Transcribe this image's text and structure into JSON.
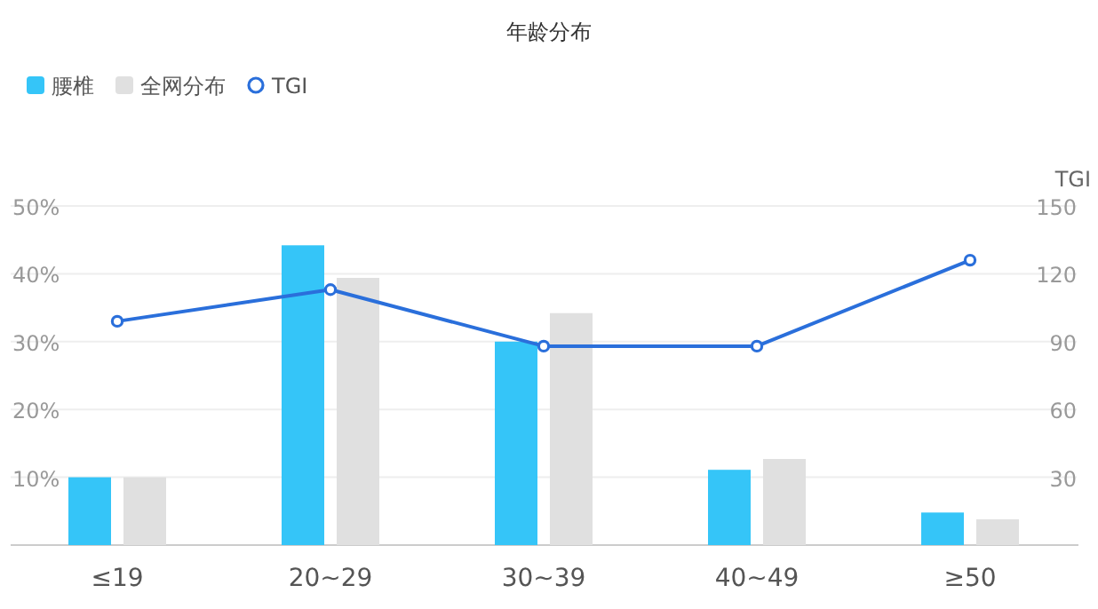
{
  "chart_data": {
    "type": "bar",
    "title": "年龄分布",
    "categories": [
      "≤19",
      "20~29",
      "30~39",
      "40~49",
      "≥50"
    ],
    "series": [
      {
        "name": "腰椎",
        "color": "#35c5f8",
        "values": [
          10,
          44.2,
          30,
          11.1,
          4.8
        ]
      },
      {
        "name": "全网分布",
        "color": "#e0e0e0",
        "values": [
          10,
          39.4,
          34.2,
          12.7,
          3.8
        ]
      },
      {
        "name": "TGI",
        "type": "line",
        "axis": "y2",
        "color": "#2a6fdb",
        "marker": "circle",
        "values": [
          99,
          113,
          88,
          88,
          126
        ]
      }
    ],
    "ylim": [
      0,
      50
    ],
    "yticks": [
      {
        "value": 0,
        "label": null
      },
      {
        "value": 10,
        "label": "10%"
      },
      {
        "value": 20,
        "label": "20%"
      },
      {
        "value": 30,
        "label": "30%"
      },
      {
        "value": 40,
        "label": "40%"
      },
      {
        "value": 50,
        "label": "50%"
      }
    ],
    "y2label": "TGI",
    "y2lim": [
      0,
      150
    ],
    "y2ticks": [
      30,
      60,
      90,
      120,
      150
    ],
    "grid": "y",
    "legend": "top left"
  }
}
